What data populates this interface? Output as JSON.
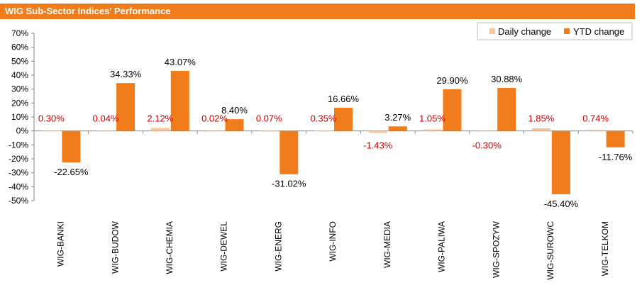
{
  "header": {
    "title": "WIG Sub-Sector Indices' Performance"
  },
  "colors": {
    "title_bar": "#f07c1b",
    "daily": "#f9c49a",
    "ytd": "#f07c1b",
    "daily_label": "#c00000",
    "ytd_label": "#000000"
  },
  "chart_data": {
    "type": "bar",
    "title": "WIG Sub-Sector Indices' Performance",
    "categories": [
      "WIG-BANKI",
      "WIG-BUDOW",
      "WIG-CHEMIA",
      "WIG-DEWEL",
      "WIG-ENERG",
      "WIG-INFO",
      "WIG-MEDIA",
      "WIG-PALIWA",
      "WIG-SPOZYW",
      "WIG-SUROWC",
      "WIG-TELKOM"
    ],
    "series": [
      {
        "name": "Daily change",
        "values": [
          0.3,
          0.04,
          2.12,
          0.02,
          0.07,
          0.35,
          -1.43,
          1.05,
          -0.3,
          1.85,
          0.74
        ],
        "labels": [
          "0.30%",
          "0.04%",
          "2.12%",
          "0.02%",
          "0.07%",
          "0.35%",
          "-1.43%",
          "1.05%",
          "-0.30%",
          "1.85%",
          "0.74%"
        ]
      },
      {
        "name": "YTD change",
        "values": [
          -22.65,
          34.33,
          43.07,
          8.4,
          -31.02,
          16.66,
          3.27,
          29.9,
          30.88,
          -45.4,
          -11.76
        ],
        "labels": [
          "-22.65%",
          "34.33%",
          "43.07%",
          "8.40%",
          "-31.02%",
          "16.66%",
          "3.27%",
          "29.90%",
          "30.88%",
          "-45.40%",
          "-11.76%"
        ]
      }
    ],
    "ylim": [
      -50,
      70
    ],
    "yticks": [
      "70%",
      "60%",
      "50%",
      "40%",
      "30%",
      "20%",
      "10%",
      "0%",
      "-10%",
      "-20%",
      "-30%",
      "-40%",
      "-50%"
    ],
    "ytick_values": [
      70,
      60,
      50,
      40,
      30,
      20,
      10,
      0,
      -10,
      -20,
      -30,
      -40,
      -50
    ],
    "legend": "top-right",
    "grid": false
  }
}
